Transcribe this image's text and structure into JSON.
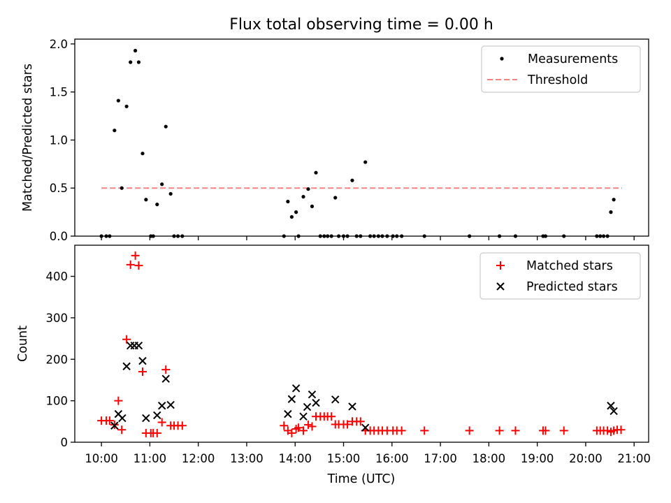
{
  "chart_data": [
    {
      "type": "scatter",
      "title": "Flux total observing time = 0.00 h",
      "xlabel": "",
      "ylabel": "Matched/Predicted stars",
      "xlim": [
        9.45,
        21.3
      ],
      "ylim": [
        0,
        2.05
      ],
      "yticks": [
        0,
        0.5,
        1.0,
        1.5,
        2.0
      ],
      "ytick_labels": [
        "0.0",
        "0.5",
        "1.0",
        "1.5",
        "2.0"
      ],
      "legend": [
        "Measurements",
        "Threshold"
      ],
      "legend_position": "top-right",
      "colors": {
        "measurements": "#000000",
        "threshold": "#ff8080"
      },
      "series": [
        {
          "name": "Measurements",
          "marker": "dot",
          "x": [
            10.0,
            10.1,
            10.17,
            10.27,
            10.35,
            10.42,
            10.52,
            10.6,
            10.7,
            10.77,
            10.85,
            10.92,
            11.02,
            11.07,
            11.15,
            11.25,
            11.33,
            11.43,
            11.5,
            11.58,
            11.67,
            13.77,
            13.85,
            13.93,
            14.02,
            14.07,
            14.17,
            14.27,
            14.35,
            14.43,
            14.52,
            14.6,
            14.67,
            14.75,
            14.83,
            14.9,
            15.0,
            15.08,
            15.18,
            15.27,
            15.35,
            15.45,
            15.55,
            15.63,
            15.72,
            15.8,
            15.9,
            16.02,
            16.1,
            16.2,
            16.67,
            17.6,
            18.22,
            18.55,
            19.12,
            19.17,
            19.55,
            20.23,
            20.3,
            20.37,
            20.45,
            20.52,
            20.58
          ],
          "y": [
            0,
            0,
            0,
            1.1,
            1.41,
            0.5,
            1.35,
            1.81,
            1.93,
            1.81,
            0.86,
            0.38,
            0,
            0,
            0.33,
            0.54,
            1.14,
            0.44,
            0,
            0,
            0,
            0,
            0.36,
            0.2,
            0.25,
            0,
            0.41,
            0.49,
            0.31,
            0.66,
            0,
            0,
            0,
            0,
            0.4,
            0,
            0,
            0,
            0.58,
            0,
            0,
            0.77,
            0,
            0,
            0,
            0,
            0,
            0,
            0,
            0,
            0,
            0,
            0,
            0,
            0,
            0,
            0,
            0,
            0,
            0,
            0,
            0.25,
            0.38
          ]
        },
        {
          "name": "Threshold",
          "marker": "dashed-line",
          "x": [
            10.0,
            20.75
          ],
          "y": [
            0.5,
            0.5
          ]
        }
      ]
    },
    {
      "type": "scatter",
      "title": "",
      "xlabel": "Time (UTC)",
      "ylabel": "Count",
      "xlim": [
        9.45,
        21.3
      ],
      "ylim": [
        0,
        475
      ],
      "xticks": [
        10,
        11,
        12,
        13,
        14,
        15,
        16,
        17,
        18,
        19,
        20,
        21
      ],
      "xtick_labels": [
        "10:00",
        "11:00",
        "12:00",
        "13:00",
        "14:00",
        "15:00",
        "16:00",
        "17:00",
        "18:00",
        "19:00",
        "20:00",
        "21:00"
      ],
      "yticks": [
        0,
        100,
        200,
        300,
        400
      ],
      "ytick_labels": [
        "0",
        "100",
        "200",
        "300",
        "400"
      ],
      "legend": [
        "Matched stars",
        "Predicted stars"
      ],
      "legend_position": "top-right",
      "colors": {
        "matched": "#ff0000",
        "predicted": "#000000"
      },
      "series": [
        {
          "name": "Matched stars",
          "marker": "plus",
          "x": [
            10.0,
            10.1,
            10.17,
            10.27,
            10.35,
            10.42,
            10.52,
            10.6,
            10.7,
            10.77,
            10.85,
            10.92,
            11.02,
            11.07,
            11.15,
            11.25,
            11.33,
            11.43,
            11.5,
            11.58,
            11.67,
            13.77,
            13.85,
            13.93,
            14.02,
            14.07,
            14.17,
            14.27,
            14.35,
            14.43,
            14.52,
            14.6,
            14.67,
            14.75,
            14.83,
            14.9,
            15.0,
            15.08,
            15.18,
            15.27,
            15.35,
            15.45,
            15.55,
            15.63,
            15.72,
            15.8,
            15.9,
            16.02,
            16.1,
            16.2,
            16.67,
            17.6,
            18.22,
            18.55,
            19.12,
            19.17,
            19.55,
            20.23,
            20.3,
            20.37,
            20.45,
            20.52,
            20.58,
            20.65,
            20.73
          ],
          "y": [
            52,
            52,
            52,
            42,
            100,
            30,
            248,
            428,
            450,
            426,
            170,
            22,
            22,
            22,
            22,
            48,
            175,
            40,
            40,
            40,
            40,
            40,
            28,
            22,
            32,
            35,
            28,
            42,
            38,
            62,
            62,
            62,
            62,
            62,
            43,
            43,
            43,
            43,
            50,
            50,
            50,
            28,
            28,
            28,
            28,
            28,
            28,
            28,
            28,
            28,
            28,
            28,
            28,
            28,
            28,
            28,
            28,
            28,
            28,
            28,
            28,
            25,
            28,
            30,
            30
          ]
        },
        {
          "name": "Predicted stars",
          "marker": "x",
          "x": [
            10.27,
            10.35,
            10.43,
            10.52,
            10.6,
            10.68,
            10.77,
            10.85,
            10.92,
            11.15,
            11.25,
            11.33,
            11.43,
            13.85,
            13.93,
            14.02,
            14.17,
            14.25,
            14.35,
            14.43,
            14.83,
            15.18,
            15.45,
            20.52,
            20.58
          ],
          "y": [
            40,
            68,
            58,
            183,
            233,
            233,
            233,
            196,
            58,
            65,
            88,
            153,
            90,
            68,
            104,
            130,
            62,
            85,
            115,
            95,
            103,
            86,
            35,
            88,
            75
          ]
        }
      ]
    }
  ]
}
